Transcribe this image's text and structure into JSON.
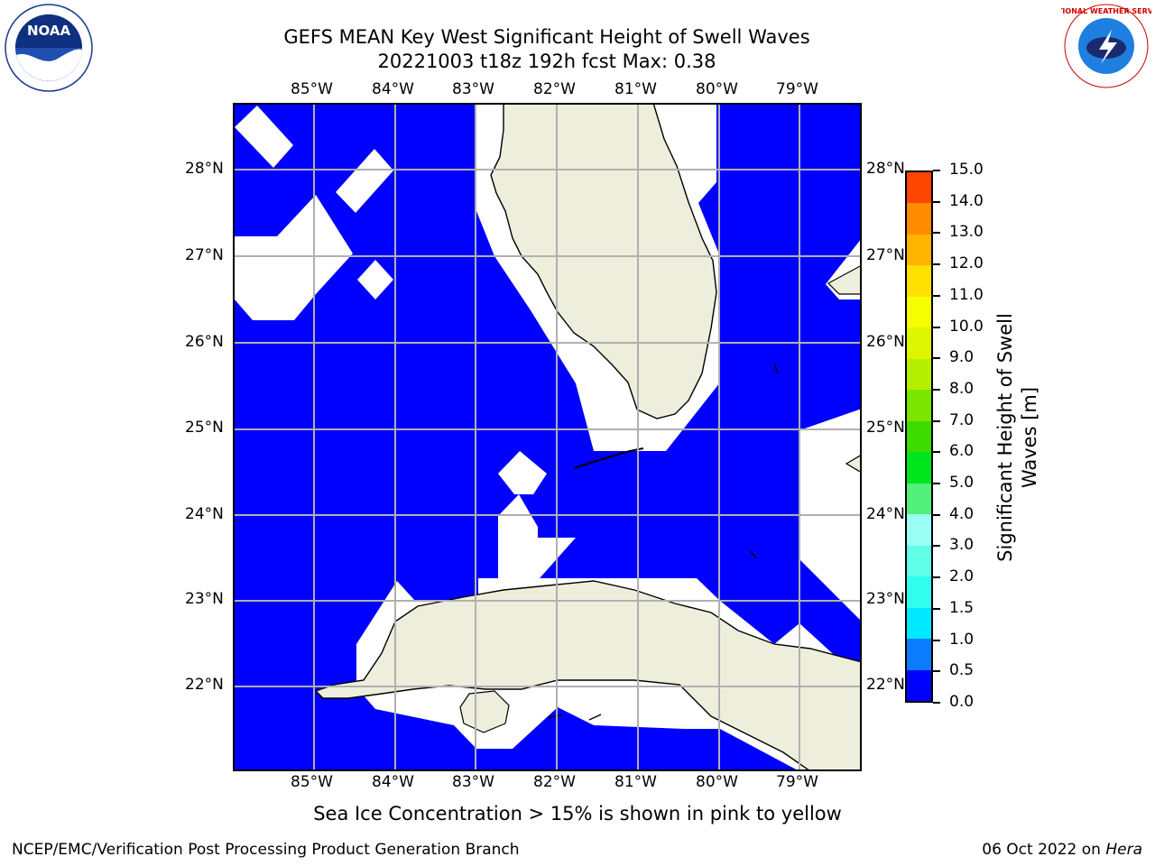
{
  "title_line1": "GEFS MEAN Key West Significant Height of Swell Waves",
  "title_line2": "20221003 t18z 192h fcst   Max: 0.38",
  "lon_labels": [
    "85°W",
    "84°W",
    "83°W",
    "82°W",
    "81°W",
    "80°W",
    "79°W"
  ],
  "lat_labels": [
    "28°N",
    "27°N",
    "26°N",
    "25°N",
    "24°N",
    "23°N",
    "22°N"
  ],
  "colorbar": {
    "label": "Significant Height of Swell Waves [m]",
    "ticks": [
      "0.0",
      "0.5",
      "1.0",
      "1.5",
      "2.0",
      "3.0",
      "4.0",
      "5.0",
      "6.0",
      "7.0",
      "8.0",
      "9.0",
      "10.0",
      "11.0",
      "12.0",
      "13.0",
      "14.0",
      "15.0"
    ],
    "colors": [
      "#0000ff",
      "#0a7cff",
      "#00e8ff",
      "#30ffee",
      "#5fffe8",
      "#9bfff5",
      "#50f07a",
      "#00e61e",
      "#3cdc00",
      "#7ce600",
      "#b4ef00",
      "#dcf500",
      "#f5ff00",
      "#ffe000",
      "#ffb400",
      "#ff8c00",
      "#ff4600",
      "#ff0000"
    ]
  },
  "caption": "Sea Ice Concentration > 15% is shown in pink to yellow",
  "footer_left": "NCEP/EMC/Verification Post Processing Product Generation Branch",
  "footer_date": "06 Oct 2022 on ",
  "footer_host": "Hera",
  "logos": {
    "left": "NOAA",
    "right_ring": "NATIONAL WEATHER SERVICE"
  },
  "colors": {
    "sea": "#0000ff",
    "land": "#eeeedd",
    "grid": "#b0b0b0"
  }
}
